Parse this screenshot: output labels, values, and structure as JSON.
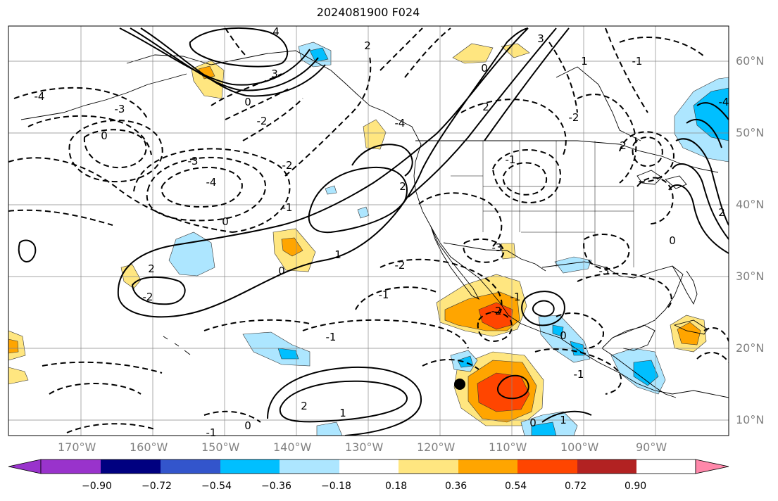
{
  "title": "2024081900 F024",
  "lon_labels": [
    "170°W",
    "160°W",
    "150°W",
    "140°W",
    "130°W",
    "120°W",
    "110°W",
    "100°W",
    "90°W"
  ],
  "lat_labels": [
    "60°N",
    "50°N",
    "40°N",
    "30°N",
    "20°N",
    "10°N"
  ],
  "colorbar": {
    "ticks": [
      "−0.90",
      "−0.72",
      "−0.54",
      "−0.36",
      "−0.18",
      "0.18",
      "0.36",
      "0.54",
      "0.72",
      "0.90"
    ],
    "colors": [
      "#9933cc",
      "#000080",
      "#3355cc",
      "#00bfff",
      "#ade6ff",
      "#ffffff",
      "#ffe680",
      "#ffa500",
      "#ff4500",
      "#b22222",
      "#ff88aa"
    ]
  },
  "contour_labels": [
    "4",
    "3",
    "2",
    "3",
    "0",
    "-4",
    "-3",
    "-2",
    "0",
    "-3",
    "-4",
    "-2",
    "-1",
    "2",
    "1",
    "0",
    "2",
    "-2",
    "-2",
    "-1",
    "0",
    "2",
    "-1",
    "0",
    "1",
    "-1",
    "-2",
    "-3",
    "2",
    "-4",
    "-4",
    "0",
    "-1",
    "2",
    "1",
    "-3",
    "-2",
    "-1",
    "-1",
    "0",
    "0",
    "-1",
    "1",
    "2",
    "0"
  ]
}
